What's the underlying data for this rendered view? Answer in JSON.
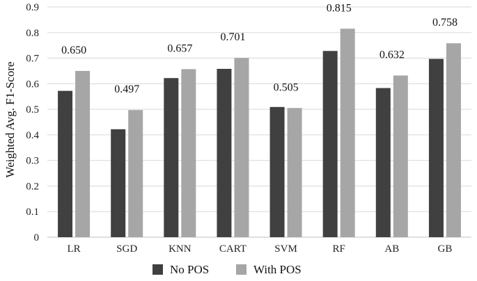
{
  "chart_data": {
    "type": "bar",
    "title": "",
    "xlabel": "",
    "ylabel": "Weighted Avg. F1-Score",
    "ylim": [
      0,
      0.9
    ],
    "yticks": [
      "0",
      "0.1",
      "0.2",
      "0.3",
      "0.4",
      "0.5",
      "0.6",
      "0.7",
      "0.8",
      "0.9"
    ],
    "grid": true,
    "legend_position": "bottom-center",
    "categories": [
      "LR",
      "SGD",
      "KNN",
      "CART",
      "SVM",
      "RF",
      "AB",
      "GB"
    ],
    "series": [
      {
        "name": "No POS",
        "color": "#404040",
        "values": [
          0.572,
          0.422,
          0.622,
          0.658,
          0.509,
          0.728,
          0.583,
          0.697
        ],
        "labels": [
          "",
          "",
          "",
          "",
          "",
          "",
          "",
          ""
        ]
      },
      {
        "name": "With POS",
        "color": "#a6a6a6",
        "values": [
          0.65,
          0.497,
          0.657,
          0.701,
          0.505,
          0.815,
          0.632,
          0.758
        ],
        "labels": [
          "0.650",
          "0.497",
          "0.657",
          "0.701",
          "0.505",
          "0.815",
          "0.632",
          "0.758"
        ]
      }
    ]
  }
}
